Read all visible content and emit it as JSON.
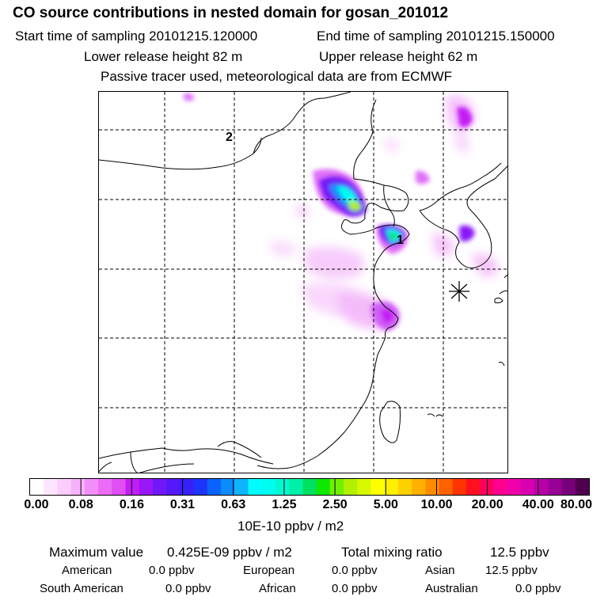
{
  "header": {
    "title": "CO  source contributions in nested domain for gosan_201012",
    "start_label": "Start time of sampling 20101215.120000",
    "end_label": "End time of sampling 20101215.150000",
    "lower_label": "Lower release height   82 m",
    "upper_label": "Upper release height   62 m",
    "note": "Passive tracer used, meteorological data are from ECMWF"
  },
  "chart_data": {
    "type": "heatmap",
    "title": "CO  source contributions in nested domain for gosan_201012",
    "map_labels": [
      "1",
      "2"
    ],
    "colorbar": {
      "units": "10E-10 ppbv / m2",
      "tick_labels": [
        "0.00",
        "0.08",
        "0.16",
        "0.31",
        "0.63",
        "1.25",
        "2.50",
        "5.00",
        "10.00",
        "20.00",
        "40.00",
        "80.00"
      ],
      "tick_values": [
        0.0,
        0.08,
        0.16,
        0.31,
        0.63,
        1.25,
        2.5,
        5.0,
        10.0,
        20.0,
        40.0,
        80.0
      ],
      "colors": [
        "#ffffff",
        "#fde6fe",
        "#facdfc",
        "#f6b3fb",
        "#f28ef8",
        "#ec6cf6",
        "#e04ef4",
        "#c41cf5",
        "#9a17f7",
        "#7018f7",
        "#5418fa",
        "#3820fb",
        "#1c34fb",
        "#0a64fb",
        "#0a8cfb",
        "#10b4fb",
        "#00fcff",
        "#00fcf0",
        "#00f8d0",
        "#00f0a8",
        "#00e060",
        "#10e800",
        "#70f000",
        "#b0f000",
        "#d8f800",
        "#ffff00",
        "#fff000",
        "#ffd000",
        "#ffb000",
        "#ff8c00",
        "#ff6000",
        "#ff3400",
        "#ff1020",
        "#ff0060",
        "#ff0090",
        "#f000a8",
        "#d800b0",
        "#b800a8",
        "#980098",
        "#780078",
        "#500050"
      ]
    }
  },
  "stats": {
    "max_label": "Maximum value",
    "max_value": "0.425E-09 ppbv / m2",
    "total_label": "Total mixing ratio",
    "total_value": "12.5 ppbv",
    "regions": [
      {
        "name": "American",
        "value": "0.0 ppbv"
      },
      {
        "name": "European",
        "value": "0.0 ppbv"
      },
      {
        "name": "Asian",
        "value": "12.5 ppbv"
      },
      {
        "name": "South American",
        "value": "0.0 ppbv"
      },
      {
        "name": "African",
        "value": "0.0 ppbv"
      },
      {
        "name": "Australian",
        "value": "0.0 ppbv"
      }
    ]
  }
}
